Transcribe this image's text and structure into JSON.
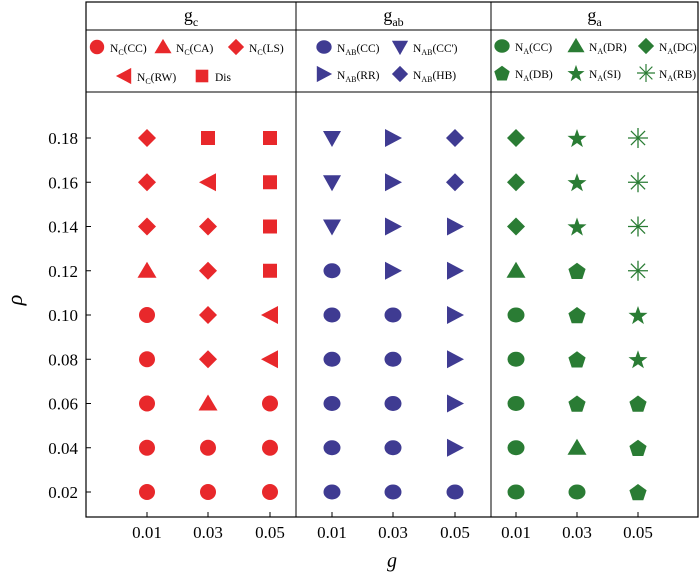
{
  "chart_data": {
    "type": "scatter",
    "xlabel": "g",
    "ylabel": "ρ",
    "panels": [
      {
        "header": "g",
        "header_sub": "c",
        "x": [
          0.01,
          0.03,
          0.05
        ],
        "legend": [
          {
            "key": "NC_CC",
            "base": "N",
            "sub": "C",
            "rest": "(CC)",
            "shape": "circle"
          },
          {
            "key": "NC_CA",
            "base": "N",
            "sub": "C",
            "rest": "(CA)",
            "shape": "triangle-up"
          },
          {
            "key": "NC_LS",
            "base": "N",
            "sub": "C",
            "rest": "(LS)",
            "shape": "diamond"
          },
          {
            "key": "NC_RW",
            "base": "N",
            "sub": "C",
            "rest": "(RW)",
            "shape": "triangle-left"
          },
          {
            "key": "Dis",
            "base": "Dis",
            "sub": "",
            "rest": "",
            "shape": "square"
          }
        ],
        "rows": [
          {
            "rho": 0.18,
            "cells": [
              "NC_LS",
              "Dis",
              "Dis"
            ]
          },
          {
            "rho": 0.16,
            "cells": [
              "NC_LS",
              "NC_RW",
              "Dis"
            ]
          },
          {
            "rho": 0.14,
            "cells": [
              "NC_LS",
              "NC_LS",
              "Dis"
            ]
          },
          {
            "rho": 0.12,
            "cells": [
              "NC_CA",
              "NC_LS",
              "Dis"
            ]
          },
          {
            "rho": 0.1,
            "cells": [
              "NC_CC",
              "NC_LS",
              "NC_RW"
            ]
          },
          {
            "rho": 0.08,
            "cells": [
              "NC_CC",
              "NC_LS",
              "NC_RW"
            ]
          },
          {
            "rho": 0.06,
            "cells": [
              "NC_CC",
              "NC_CA",
              "NC_CC"
            ]
          },
          {
            "rho": 0.04,
            "cells": [
              "NC_CC",
              "NC_CC",
              "NC_CC"
            ]
          },
          {
            "rho": 0.02,
            "cells": [
              "NC_CC",
              "NC_CC",
              "NC_CC"
            ]
          }
        ]
      },
      {
        "header": "g",
        "header_sub": "ab",
        "x": [
          0.01,
          0.03,
          0.05
        ],
        "legend": [
          {
            "key": "NAB_CC",
            "base": "N",
            "sub": "AB",
            "rest": "(CC)",
            "shape": "ellipse"
          },
          {
            "key": "NAB_CCp",
            "base": "N",
            "sub": "AB",
            "rest": "(CC')",
            "shape": "triangle-down"
          },
          {
            "key": "NAB_RR",
            "base": "N",
            "sub": "AB",
            "rest": "(RR)",
            "shape": "triangle-right"
          },
          {
            "key": "NAB_HB",
            "base": "N",
            "sub": "AB",
            "rest": "(HB)",
            "shape": "diamond"
          }
        ],
        "rows": [
          {
            "rho": 0.18,
            "cells": [
              "NAB_CCp",
              "NAB_RR",
              "NAB_HB"
            ]
          },
          {
            "rho": 0.16,
            "cells": [
              "NAB_CCp",
              "NAB_RR",
              "NAB_HB"
            ]
          },
          {
            "rho": 0.14,
            "cells": [
              "NAB_CCp",
              "NAB_RR",
              "NAB_RR"
            ]
          },
          {
            "rho": 0.12,
            "cells": [
              "NAB_CC",
              "NAB_RR",
              "NAB_RR"
            ]
          },
          {
            "rho": 0.1,
            "cells": [
              "NAB_CC",
              "NAB_CC",
              "NAB_RR"
            ]
          },
          {
            "rho": 0.08,
            "cells": [
              "NAB_CC",
              "NAB_CC",
              "NAB_RR"
            ]
          },
          {
            "rho": 0.06,
            "cells": [
              "NAB_CC",
              "NAB_CC",
              "NAB_RR"
            ]
          },
          {
            "rho": 0.04,
            "cells": [
              "NAB_CC",
              "NAB_CC",
              "NAB_RR"
            ]
          },
          {
            "rho": 0.02,
            "cells": [
              "NAB_CC",
              "NAB_CC",
              "NAB_CC"
            ]
          }
        ]
      },
      {
        "header": "g",
        "header_sub": "a",
        "x": [
          0.01,
          0.03,
          0.05
        ],
        "legend": [
          {
            "key": "NA_CC",
            "base": "N",
            "sub": "A",
            "rest": "(CC)",
            "shape": "ellipse"
          },
          {
            "key": "NA_DR",
            "base": "N",
            "sub": "A",
            "rest": "(DR)",
            "shape": "triangle-up"
          },
          {
            "key": "NA_DC",
            "base": "N",
            "sub": "A",
            "rest": "(DC)",
            "shape": "diamond"
          },
          {
            "key": "NA_DB",
            "base": "N",
            "sub": "A",
            "rest": "(DB)",
            "shape": "pentagon"
          },
          {
            "key": "NA_SI",
            "base": "N",
            "sub": "A",
            "rest": "(SI)",
            "shape": "star"
          },
          {
            "key": "NA_RB",
            "base": "N",
            "sub": "A",
            "rest": "(RB)",
            "shape": "asterisk"
          }
        ],
        "rows": [
          {
            "rho": 0.18,
            "cells": [
              "NA_DC",
              "NA_SI",
              "NA_RB"
            ]
          },
          {
            "rho": 0.16,
            "cells": [
              "NA_DC",
              "NA_SI",
              "NA_RB"
            ]
          },
          {
            "rho": 0.14,
            "cells": [
              "NA_DC",
              "NA_SI",
              "NA_RB"
            ]
          },
          {
            "rho": 0.12,
            "cells": [
              "NA_DR",
              "NA_DB",
              "NA_RB"
            ]
          },
          {
            "rho": 0.1,
            "cells": [
              "NA_CC",
              "NA_DB",
              "NA_SI"
            ]
          },
          {
            "rho": 0.08,
            "cells": [
              "NA_CC",
              "NA_DB",
              "NA_SI"
            ]
          },
          {
            "rho": 0.06,
            "cells": [
              "NA_CC",
              "NA_DB",
              "NA_DB"
            ]
          },
          {
            "rho": 0.04,
            "cells": [
              "NA_CC",
              "NA_DR",
              "NA_DB"
            ]
          },
          {
            "rho": 0.02,
            "cells": [
              "NA_CC",
              "NA_CC",
              "NA_DB"
            ]
          }
        ]
      }
    ],
    "yticks": [
      "0.18",
      "0.16",
      "0.14",
      "0.12",
      "0.10",
      "0.08",
      "0.06",
      "0.04",
      "0.02"
    ],
    "xticks": [
      "0.01",
      "0.03",
      "0.05"
    ],
    "grid": false
  },
  "colors": {
    "panel1": "#e8282b",
    "panel2": "#3f3b92",
    "panel3": "#2a7c34"
  }
}
